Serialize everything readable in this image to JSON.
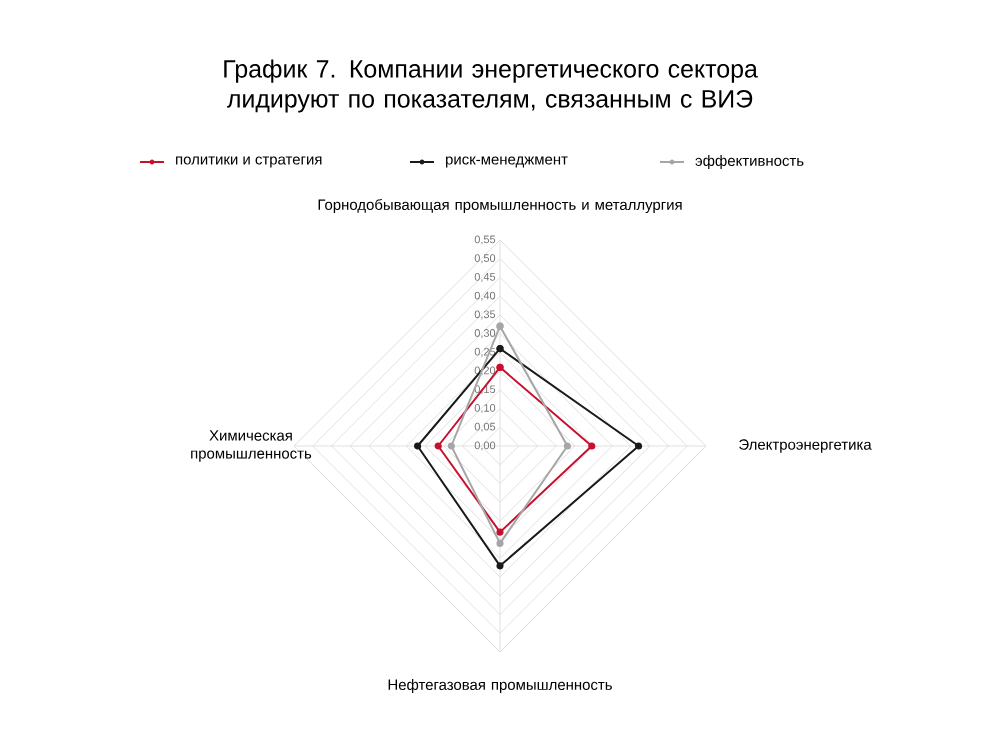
{
  "chart_data": {
    "type": "radar",
    "title": "График 7. Компании энергетического сектора лидируют по показателям, связанным с ВИЭ",
    "categories": [
      "Горнодобывающая промышленность и металлургия",
      "Электроэнергетика",
      "Нефтегазовая промышленность",
      "Химическая промышленность"
    ],
    "series": [
      {
        "name": "политики и стратегия",
        "color": "#c8102e",
        "values": [
          0.21,
          0.245,
          0.23,
          0.165
        ]
      },
      {
        "name": "риск-менеджмент",
        "color": "#1a1a1a",
        "values": [
          0.26,
          0.37,
          0.32,
          0.22
        ]
      },
      {
        "name": "эффективность",
        "color": "#a6a6a6",
        "values": [
          0.32,
          0.18,
          0.26,
          0.13
        ]
      }
    ],
    "ylim": [
      0,
      0.55
    ],
    "yticks": [
      {
        "value": 0,
        "label": "0,00"
      },
      {
        "value": 0.05,
        "label": "0,05"
      },
      {
        "value": 0.1,
        "label": "0,10"
      },
      {
        "value": 0.15,
        "label": "0,15"
      },
      {
        "value": 0.2,
        "label": "0,20"
      },
      {
        "value": 0.25,
        "label": "0,25"
      },
      {
        "value": 0.3,
        "label": "0,30"
      },
      {
        "value": 0.35,
        "label": "0,35"
      },
      {
        "value": 0.4,
        "label": "0,40"
      },
      {
        "value": 0.45,
        "label": "0,45"
      },
      {
        "value": 0.5,
        "label": "0,50"
      },
      {
        "value": 0.55,
        "label": "0,55"
      }
    ],
    "grid": true,
    "legend": "top",
    "marker": "circle",
    "line_style": "solid"
  }
}
